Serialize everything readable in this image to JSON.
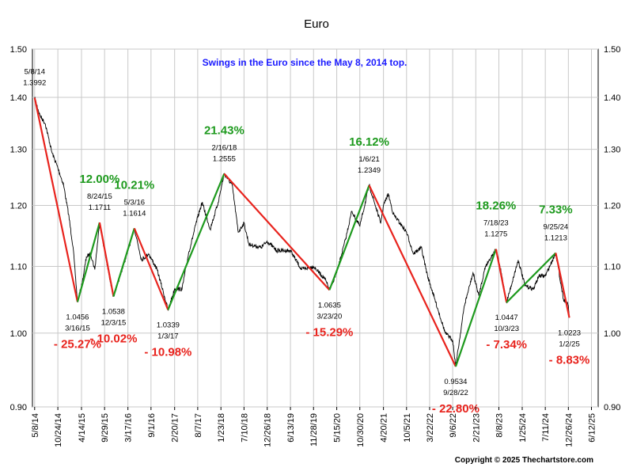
{
  "chart_data": {
    "type": "line",
    "title": "Euro",
    "subtitle": "Swings in the Euro since the May 8, 2014 top.",
    "copyright": "Copyright © 2025 Thechartstore.com",
    "y_scale": "log",
    "ylim": [
      0.9,
      1.5
    ],
    "y_ticks": [
      "1.50",
      "1.40",
      "1.30",
      "1.20",
      "1.10",
      "1.00",
      "0.90"
    ],
    "x_range": [
      "2014-04-22",
      "2025-07-31"
    ],
    "x_ticks": [
      "5/8/14",
      "10/24/14",
      "4/14/15",
      "9/29/15",
      "3/17/16",
      "9/1/16",
      "2/20/17",
      "8/7/17",
      "1/23/18",
      "7/10/18",
      "12/26/18",
      "6/13/19",
      "11/28/19",
      "5/15/20",
      "10/30/20",
      "4/20/21",
      "10/5/21",
      "3/22/22",
      "9/6/22",
      "2/21/23",
      "8/8/23",
      "1/25/24",
      "7/11/24",
      "12/26/24",
      "6/12/25"
    ],
    "grid": true,
    "colors": {
      "up": "#1e9a1e",
      "down": "#e8231d",
      "price": "#000000",
      "subtitle": "#1a1aff"
    },
    "series": [
      {
        "values": [
          [
            "2014-05-08",
            1.3992
          ],
          [
            "2014-06-15",
            1.365
          ],
          [
            "2014-07-25",
            1.348
          ],
          [
            "2014-09-10",
            1.295
          ],
          [
            "2014-10-24",
            1.266
          ],
          [
            "2014-12-05",
            1.235
          ],
          [
            "2015-01-10",
            1.185
          ],
          [
            "2015-02-12",
            1.13
          ],
          [
            "2015-03-16",
            1.0456
          ],
          [
            "2015-04-20",
            1.075
          ],
          [
            "2015-05-20",
            1.115
          ],
          [
            "2015-06-20",
            1.12
          ],
          [
            "2015-07-20",
            1.095
          ],
          [
            "2015-08-24",
            1.1711
          ],
          [
            "2015-09-29",
            1.125
          ],
          [
            "2015-11-10",
            1.075
          ],
          [
            "2015-12-03",
            1.0538
          ],
          [
            "2016-01-20",
            1.085
          ],
          [
            "2016-03-17",
            1.125
          ],
          [
            "2016-05-03",
            1.1614
          ],
          [
            "2016-06-24",
            1.11
          ],
          [
            "2016-08-15",
            1.12
          ],
          [
            "2016-10-15",
            1.095
          ],
          [
            "2016-11-30",
            1.06
          ],
          [
            "2017-01-03",
            1.0339
          ],
          [
            "2017-02-20",
            1.065
          ],
          [
            "2017-04-15",
            1.065
          ],
          [
            "2017-06-01",
            1.12
          ],
          [
            "2017-08-07",
            1.18
          ],
          [
            "2017-09-08",
            1.205
          ],
          [
            "2017-11-06",
            1.16
          ],
          [
            "2018-01-03",
            1.205
          ],
          [
            "2018-02-16",
            1.2555
          ],
          [
            "2018-04-15",
            1.235
          ],
          [
            "2018-05-29",
            1.155
          ],
          [
            "2018-07-10",
            1.17
          ],
          [
            "2018-08-15",
            1.135
          ],
          [
            "2018-11-12",
            1.13
          ],
          [
            "2018-12-26",
            1.14
          ],
          [
            "2019-03-05",
            1.125
          ],
          [
            "2019-06-13",
            1.125
          ],
          [
            "2019-09-01",
            1.095
          ],
          [
            "2019-11-28",
            1.1
          ],
          [
            "2020-02-20",
            1.08
          ],
          [
            "2020-03-23",
            1.0635
          ],
          [
            "2020-05-15",
            1.09
          ],
          [
            "2020-07-20",
            1.145
          ],
          [
            "2020-09-01",
            1.19
          ],
          [
            "2020-10-30",
            1.165
          ],
          [
            "2021-01-06",
            1.2349
          ],
          [
            "2021-03-31",
            1.17
          ],
          [
            "2021-04-20",
            1.2
          ],
          [
            "2021-05-25",
            1.22
          ],
          [
            "2021-07-01",
            1.185
          ],
          [
            "2021-10-05",
            1.155
          ],
          [
            "2021-11-24",
            1.12
          ],
          [
            "2022-01-20",
            1.13
          ],
          [
            "2022-03-07",
            1.085
          ],
          [
            "2022-04-28",
            1.05
          ],
          [
            "2022-07-14",
            1.0
          ],
          [
            "2022-09-06",
            0.99
          ],
          [
            "2022-09-28",
            0.9534
          ],
          [
            "2022-11-30",
            1.04
          ],
          [
            "2023-02-01",
            1.09
          ],
          [
            "2023-03-15",
            1.055
          ],
          [
            "2023-05-02",
            1.1
          ],
          [
            "2023-07-18",
            1.1275
          ],
          [
            "2023-08-30",
            1.085
          ],
          [
            "2023-10-03",
            1.0447
          ],
          [
            "2023-12-27",
            1.11
          ],
          [
            "2024-02-14",
            1.07
          ],
          [
            "2024-04-16",
            1.065
          ],
          [
            "2024-05-25",
            1.085
          ],
          [
            "2024-07-11",
            1.085
          ],
          [
            "2024-09-25",
            1.1213
          ],
          [
            "2024-11-20",
            1.05
          ],
          [
            "2024-12-26",
            1.04
          ],
          [
            "2025-01-02",
            1.0223
          ]
        ]
      }
    ],
    "swings": [
      {
        "date": "2014-05-08",
        "value": 1.3992,
        "date_label": "5/8/14",
        "value_label": "1.3992",
        "kind": "top"
      },
      {
        "date": "2015-03-16",
        "value": 1.0456,
        "date_label": "3/16/15",
        "value_label": "1.0456",
        "kind": "bottom",
        "pct_label": "- 25.27%"
      },
      {
        "date": "2015-08-24",
        "value": 1.1711,
        "date_label": "8/24/15",
        "value_label": "1.1711",
        "kind": "top",
        "pct_label": "12.00%"
      },
      {
        "date": "2015-12-03",
        "value": 1.0538,
        "date_label": "12/3/15",
        "value_label": "1.0538",
        "kind": "bottom",
        "pct_label": "- 10.02%"
      },
      {
        "date": "2016-05-03",
        "value": 1.1614,
        "date_label": "5/3/16",
        "value_label": "1.1614",
        "kind": "top",
        "pct_label": "10.21%"
      },
      {
        "date": "2017-01-03",
        "value": 1.0339,
        "date_label": "1/3/17",
        "value_label": "1.0339",
        "kind": "bottom",
        "pct_label": "- 10.98%"
      },
      {
        "date": "2018-02-16",
        "value": 1.2555,
        "date_label": "2/16/18",
        "value_label": "1.2555",
        "kind": "top",
        "pct_label": "21.43%"
      },
      {
        "date": "2020-03-23",
        "value": 1.0635,
        "date_label": "3/23/20",
        "value_label": "1.0635",
        "kind": "bottom",
        "pct_label": "- 15.29%"
      },
      {
        "date": "2021-01-06",
        "value": 1.2349,
        "date_label": "1/6/21",
        "value_label": "1.2349",
        "kind": "top",
        "pct_label": "16.12%"
      },
      {
        "date": "2022-09-28",
        "value": 0.9534,
        "date_label": "9/28/22",
        "value_label": "0.9534",
        "kind": "bottom",
        "pct_label": "- 22.80%"
      },
      {
        "date": "2023-07-18",
        "value": 1.1275,
        "date_label": "7/18/23",
        "value_label": "1.1275",
        "kind": "top",
        "pct_label": "18.26%"
      },
      {
        "date": "2023-10-03",
        "value": 1.0447,
        "date_label": "10/3/23",
        "value_label": "1.0447",
        "kind": "bottom",
        "pct_label": "- 7.34%"
      },
      {
        "date": "2024-09-25",
        "value": 1.1213,
        "date_label": "9/25/24",
        "value_label": "1.1213",
        "kind": "top",
        "pct_label": "7.33%"
      },
      {
        "date": "2025-01-02",
        "value": 1.0223,
        "date_label": "1/2/25",
        "value_label": "1.0223",
        "kind": "bottom",
        "pct_label": "- 8.83%"
      }
    ]
  }
}
